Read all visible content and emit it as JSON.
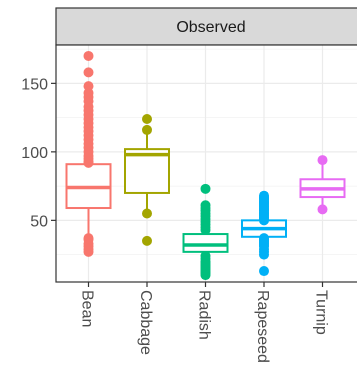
{
  "chart_data": {
    "type": "box",
    "facet": "Observed",
    "ylim": [
      5,
      178
    ],
    "y_ticks": [
      50,
      100,
      150
    ],
    "grid": true,
    "legend": "none",
    "categories": [
      "Bean",
      "Cabbage",
      "Radish",
      "Rapeseed",
      "Turnip"
    ],
    "colors": [
      "#f8766d",
      "#a3a500",
      "#00bf7d",
      "#00b0f6",
      "#e76bf3"
    ],
    "boxes": [
      {
        "category": "Bean",
        "lower_whisker": 38,
        "q1": 59,
        "median": 74,
        "q3": 91,
        "upper_whisker": 135,
        "outliers": [
          27,
          29,
          31,
          33,
          36,
          37,
          92,
          93,
          95,
          97,
          100,
          103,
          106,
          109,
          112,
          115,
          118,
          121,
          124,
          127,
          130,
          133,
          137,
          140,
          143,
          148,
          158,
          170
        ]
      },
      {
        "category": "Cabbage",
        "lower_whisker": 56,
        "q1": 70,
        "median": 98,
        "q3": 102,
        "upper_whisker": 118,
        "outliers": [
          35,
          55,
          116,
          124
        ]
      },
      {
        "category": "Radish",
        "lower_whisker": 15,
        "q1": 27,
        "median": 32,
        "q3": 40,
        "upper_whisker": 55,
        "outliers": [
          10,
          11,
          12,
          13,
          14,
          15,
          16,
          17,
          18,
          19,
          20,
          22,
          24,
          43,
          45,
          47,
          49,
          51,
          53,
          55,
          57,
          59,
          61,
          73
        ]
      },
      {
        "category": "Rapeseed",
        "lower_whisker": 30,
        "q1": 38,
        "median": 44,
        "q3": 50,
        "upper_whisker": 58,
        "outliers": [
          13,
          25,
          27,
          29,
          31,
          32,
          33,
          34,
          35,
          36,
          37,
          50,
          51,
          52,
          53,
          54,
          55,
          56,
          57,
          58,
          59,
          60,
          61,
          62,
          63,
          64,
          65,
          66,
          67,
          68
        ]
      },
      {
        "category": "Turnip",
        "lower_whisker": 60,
        "q1": 67,
        "median": 73,
        "q3": 80,
        "upper_whisker": 92,
        "outliers": [
          58,
          94
        ]
      }
    ]
  }
}
